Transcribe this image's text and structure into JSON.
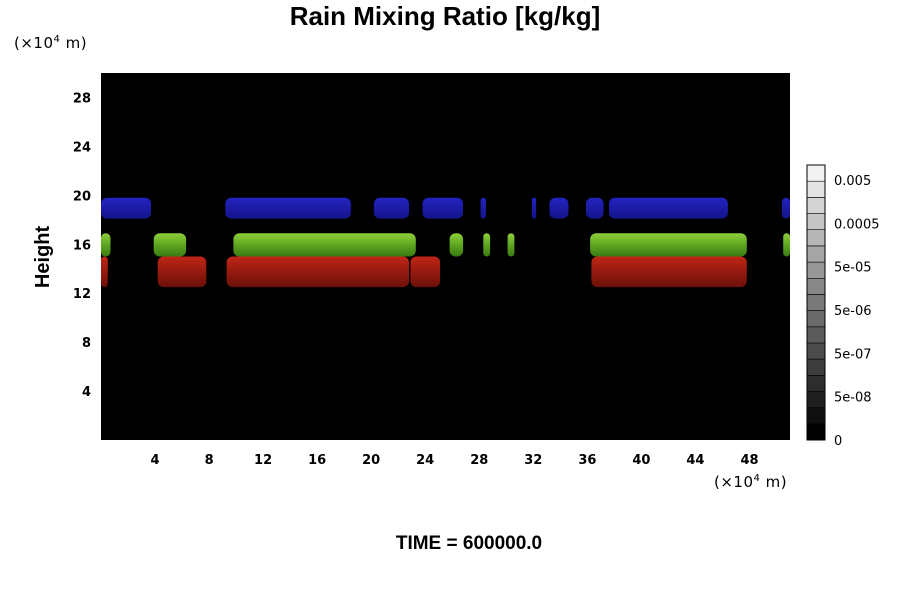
{
  "chart_data": {
    "type": "heatmap",
    "title": "Rain Mixing Ratio [kg/kg]",
    "ylabel": "Height",
    "xlabel": "",
    "x_unit": {
      "prefix": "(×10",
      "exp": "4",
      "suffix": " m)"
    },
    "y_unit": {
      "prefix": "(×10",
      "exp": "4",
      "suffix": " m)"
    },
    "xlim": [
      0,
      51
    ],
    "ylim": [
      0,
      30
    ],
    "x_ticks": [
      "4",
      "8",
      "12",
      "16",
      "20",
      "24",
      "28",
      "32",
      "36",
      "40",
      "44",
      "48"
    ],
    "y_ticks": [
      "4",
      "8",
      "12",
      "16",
      "20",
      "24",
      "28"
    ],
    "background_color": "#000000",
    "grid": false,
    "colorbar": {
      "placement": "right",
      "labels": [
        "0.005",
        "0.0005",
        "5e-05",
        "5e-06",
        "5e-07",
        "5e-08",
        "0"
      ],
      "levels": 17,
      "color_low": "#000000",
      "color_high": "#f2f2f2"
    },
    "regions": [
      {
        "name": "blue layer",
        "color": "#1a1aa8",
        "y_bottom": 18.1,
        "y_top": 19.8,
        "x_spans": [
          [
            0,
            3.7
          ],
          [
            9.2,
            18.5
          ],
          [
            20.2,
            22.8
          ],
          [
            23.8,
            26.8
          ],
          [
            28.1,
            28.5
          ],
          [
            31.9,
            32.2
          ],
          [
            33.2,
            34.6
          ],
          [
            35.9,
            37.2
          ],
          [
            37.6,
            46.4
          ],
          [
            50.4,
            51
          ]
        ]
      },
      {
        "name": "green layer",
        "color": "#4f9a1a",
        "y_bottom": 15.0,
        "y_top": 16.9,
        "x_spans": [
          [
            0,
            0.7
          ],
          [
            3.9,
            6.3
          ],
          [
            9.8,
            23.3
          ],
          [
            25.8,
            26.8
          ],
          [
            28.3,
            28.8
          ],
          [
            30.1,
            30.6
          ],
          [
            36.2,
            47.8
          ],
          [
            50.5,
            51
          ]
        ]
      },
      {
        "name": "red layer",
        "color": "#9a1a10",
        "y_bottom": 12.5,
        "y_top": 15.0,
        "x_spans": [
          [
            0,
            0.5
          ],
          [
            4.2,
            7.8
          ],
          [
            9.3,
            22.8
          ],
          [
            22.9,
            25.1
          ],
          [
            36.3,
            47.8
          ]
        ]
      }
    ]
  },
  "footer": {
    "time_label": "TIME = 600000.0"
  }
}
